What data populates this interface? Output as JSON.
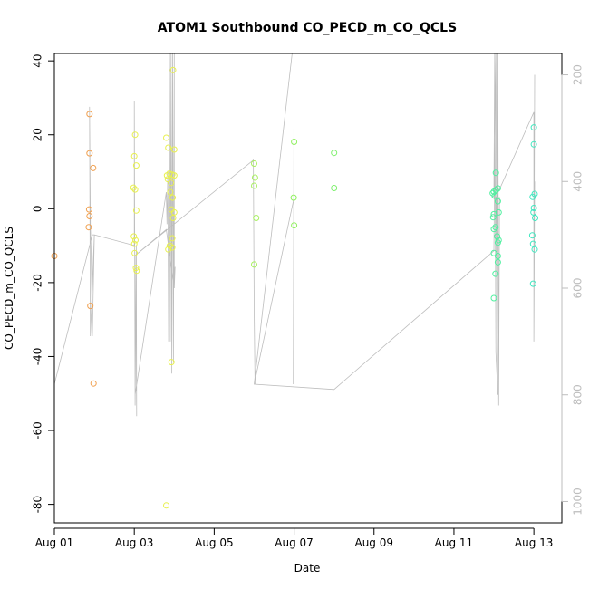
{
  "chart_data": {
    "type": "scatter",
    "title": "ATOM1 Southbound CO_PECD_m_CO_QCLS",
    "xlabel": "Date",
    "ylabel": "CO_PECD_m_CO_QCLS",
    "xlim": [
      0.0,
      12.7
    ],
    "ylim": [
      -85,
      42
    ],
    "x_ticks": [
      {
        "x": 0,
        "label": "Aug 01"
      },
      {
        "x": 2,
        "label": "Aug 03"
      },
      {
        "x": 4,
        "label": "Aug 05"
      },
      {
        "x": 6,
        "label": "Aug 07"
      },
      {
        "x": 8,
        "label": "Aug 09"
      },
      {
        "x": 10,
        "label": "Aug 11"
      },
      {
        "x": 12,
        "label": "Aug 13"
      }
    ],
    "y_ticks": [
      -80,
      -60,
      -40,
      -20,
      0,
      20,
      40
    ],
    "y2_ticks": [
      200,
      400,
      600,
      800,
      1000
    ],
    "y2lim": [
      1040,
      160
    ],
    "grid": false,
    "points": [
      {
        "x": 0.0,
        "y": -12.8,
        "color": "#f0a050"
      },
      {
        "x": 0.88,
        "y": 25.6,
        "color": "#f0a050"
      },
      {
        "x": 0.88,
        "y": 15.0,
        "color": "#f0a050"
      },
      {
        "x": 0.97,
        "y": 11.0,
        "color": "#f0a050"
      },
      {
        "x": 0.87,
        "y": -0.2,
        "color": "#f0a050"
      },
      {
        "x": 0.88,
        "y": -2.0,
        "color": "#f0a050"
      },
      {
        "x": 0.86,
        "y": -5.0,
        "color": "#f0a050"
      },
      {
        "x": 0.9,
        "y": -26.3,
        "color": "#f0a050"
      },
      {
        "x": 0.98,
        "y": -47.3,
        "color": "#f0a050"
      },
      {
        "x": 2.02,
        "y": 20.0,
        "color": "#e8f050"
      },
      {
        "x": 2.0,
        "y": 14.2,
        "color": "#e8f050"
      },
      {
        "x": 2.05,
        "y": 11.7,
        "color": "#e8f050"
      },
      {
        "x": 1.98,
        "y": 5.7,
        "color": "#e8f050"
      },
      {
        "x": 2.02,
        "y": 5.2,
        "color": "#e8f050"
      },
      {
        "x": 2.05,
        "y": -0.5,
        "color": "#e8f050"
      },
      {
        "x": 1.99,
        "y": -7.5,
        "color": "#e8f050"
      },
      {
        "x": 2.03,
        "y": -8.5,
        "color": "#e8f050"
      },
      {
        "x": 2.0,
        "y": -9.5,
        "color": "#e8f050"
      },
      {
        "x": 2.01,
        "y": -12.0,
        "color": "#e8f050"
      },
      {
        "x": 2.04,
        "y": -16.0,
        "color": "#e8f050"
      },
      {
        "x": 2.06,
        "y": -16.8,
        "color": "#e8f050"
      },
      {
        "x": 2.8,
        "y": 19.2,
        "color": "#e8f050"
      },
      {
        "x": 2.97,
        "y": 37.5,
        "color": "#e8f050"
      },
      {
        "x": 2.85,
        "y": 16.5,
        "color": "#e8f050"
      },
      {
        "x": 3.0,
        "y": 16.0,
        "color": "#e8f050"
      },
      {
        "x": 2.82,
        "y": 9.0,
        "color": "#e8f050"
      },
      {
        "x": 2.88,
        "y": 9.5,
        "color": "#e8f050"
      },
      {
        "x": 2.95,
        "y": 9.2,
        "color": "#e8f050"
      },
      {
        "x": 3.0,
        "y": 9.0,
        "color": "#e8f050"
      },
      {
        "x": 2.84,
        "y": 8.0,
        "color": "#e8f050"
      },
      {
        "x": 2.92,
        "y": 7.0,
        "color": "#e8f050"
      },
      {
        "x": 2.9,
        "y": 4.5,
        "color": "#e8f050"
      },
      {
        "x": 2.96,
        "y": 3.0,
        "color": "#e8f050"
      },
      {
        "x": 2.93,
        "y": -0.2,
        "color": "#e8f050"
      },
      {
        "x": 3.0,
        "y": -1.0,
        "color": "#e8f050"
      },
      {
        "x": 2.97,
        "y": -2.5,
        "color": "#e8f050"
      },
      {
        "x": 2.95,
        "y": -8.0,
        "color": "#e8f050"
      },
      {
        "x": 2.89,
        "y": -10.0,
        "color": "#e8f050"
      },
      {
        "x": 2.95,
        "y": -10.5,
        "color": "#e8f050"
      },
      {
        "x": 2.85,
        "y": -11.0,
        "color": "#e8f050"
      },
      {
        "x": 2.93,
        "y": -41.5,
        "color": "#e8f050"
      },
      {
        "x": 2.8,
        "y": -80.3,
        "color": "#e8f050"
      },
      {
        "x": 5.0,
        "y": 12.2,
        "color": "#a8f060"
      },
      {
        "x": 5.02,
        "y": 8.4,
        "color": "#a8f060"
      },
      {
        "x": 5.0,
        "y": 6.2,
        "color": "#a8f060"
      },
      {
        "x": 5.05,
        "y": -2.5,
        "color": "#a8f060"
      },
      {
        "x": 5.0,
        "y": -15.1,
        "color": "#a8f060"
      },
      {
        "x": 6.0,
        "y": 18.1,
        "color": "#90f060"
      },
      {
        "x": 5.99,
        "y": 3.0,
        "color": "#90f060"
      },
      {
        "x": 6.0,
        "y": -4.5,
        "color": "#90f060"
      },
      {
        "x": 7.0,
        "y": 15.1,
        "color": "#80f070"
      },
      {
        "x": 7.0,
        "y": 5.6,
        "color": "#80f070"
      },
      {
        "x": 11.05,
        "y": 9.7,
        "color": "#50f0a0"
      },
      {
        "x": 11.1,
        "y": 5.5,
        "color": "#50f0a0"
      },
      {
        "x": 11.0,
        "y": 4.6,
        "color": "#50f0a0"
      },
      {
        "x": 11.05,
        "y": 5.0,
        "color": "#50f0a0"
      },
      {
        "x": 10.97,
        "y": 4.2,
        "color": "#50f0a0"
      },
      {
        "x": 11.02,
        "y": 3.5,
        "color": "#50f0a0"
      },
      {
        "x": 11.1,
        "y": 2.0,
        "color": "#50f0a0"
      },
      {
        "x": 11.12,
        "y": -1.0,
        "color": "#50f0a0"
      },
      {
        "x": 11.0,
        "y": -1.5,
        "color": "#50f0a0"
      },
      {
        "x": 10.98,
        "y": -2.3,
        "color": "#50f0a0"
      },
      {
        "x": 11.04,
        "y": -5.0,
        "color": "#50f0a0"
      },
      {
        "x": 11.0,
        "y": -5.5,
        "color": "#50f0a0"
      },
      {
        "x": 11.08,
        "y": -7.5,
        "color": "#50f0a0"
      },
      {
        "x": 11.12,
        "y": -8.5,
        "color": "#50f0a0"
      },
      {
        "x": 11.1,
        "y": -9.2,
        "color": "#50f0a0"
      },
      {
        "x": 11.0,
        "y": -12.0,
        "color": "#50f0a0"
      },
      {
        "x": 11.1,
        "y": -12.8,
        "color": "#50f0a0"
      },
      {
        "x": 11.1,
        "y": -14.5,
        "color": "#50f0a0"
      },
      {
        "x": 11.04,
        "y": -17.6,
        "color": "#50f0a0"
      },
      {
        "x": 11.0,
        "y": -24.2,
        "color": "#50f0a0"
      },
      {
        "x": 12.0,
        "y": 22.0,
        "color": "#40e8c0"
      },
      {
        "x": 12.0,
        "y": 17.4,
        "color": "#40e8c0"
      },
      {
        "x": 12.02,
        "y": 4.0,
        "color": "#40e8c0"
      },
      {
        "x": 11.97,
        "y": 3.2,
        "color": "#40e8c0"
      },
      {
        "x": 12.0,
        "y": 0.2,
        "color": "#40e8c0"
      },
      {
        "x": 11.99,
        "y": -1.0,
        "color": "#40e8c0"
      },
      {
        "x": 12.03,
        "y": -2.5,
        "color": "#40e8c0"
      },
      {
        "x": 11.96,
        "y": -7.2,
        "color": "#40e8c0"
      },
      {
        "x": 11.98,
        "y": -9.5,
        "color": "#40e8c0"
      },
      {
        "x": 12.02,
        "y": -11.0,
        "color": "#40e8c0"
      },
      {
        "x": 11.98,
        "y": -20.3,
        "color": "#40e8c0"
      }
    ],
    "altitude_path": [
      [
        0.0,
        780
      ],
      [
        0.95,
        500
      ],
      [
        1.0,
        500
      ],
      [
        0.95,
        690
      ],
      [
        0.92,
        540
      ],
      [
        0.9,
        480
      ],
      [
        0.88,
        260
      ],
      [
        0.9,
        690
      ],
      [
        1.0,
        500
      ],
      [
        2.0,
        520
      ],
      [
        2.0,
        250
      ],
      [
        2.02,
        820
      ],
      [
        2.05,
        520
      ],
      [
        2.06,
        840
      ],
      [
        2.04,
        540
      ],
      [
        2.02,
        800
      ],
      [
        2.8,
        420
      ],
      [
        2.82,
        480
      ],
      [
        2.84,
        380
      ],
      [
        2.86,
        700
      ],
      [
        2.88,
        160
      ],
      [
        2.9,
        700
      ],
      [
        2.92,
        160
      ],
      [
        2.94,
        760
      ],
      [
        2.96,
        160
      ],
      [
        2.98,
        740
      ],
      [
        3.0,
        160
      ],
      [
        3.0,
        600
      ],
      [
        3.02,
        560
      ],
      [
        3.0,
        600
      ],
      [
        2.8,
        490
      ],
      [
        2.0,
        540
      ],
      [
        4.98,
        360
      ],
      [
        5.0,
        640
      ],
      [
        5.02,
        780
      ],
      [
        5.0,
        780
      ],
      [
        5.95,
        160
      ],
      [
        6.0,
        160
      ],
      [
        5.98,
        780
      ],
      [
        6.0,
        160
      ],
      [
        6.0,
        600
      ],
      [
        6.0,
        430
      ],
      [
        5.0,
        780
      ],
      [
        7.0,
        790
      ],
      [
        11.0,
        530
      ],
      [
        11.05,
        160
      ],
      [
        11.08,
        800
      ],
      [
        11.1,
        160
      ],
      [
        11.12,
        820
      ],
      [
        11.14,
        430
      ],
      [
        11.0,
        430
      ],
      [
        11.02,
        160
      ],
      [
        11.05,
        720
      ],
      [
        11.1,
        800
      ],
      [
        11.05,
        430
      ],
      [
        12.0,
        270
      ],
      [
        12.0,
        700
      ],
      [
        12.02,
        400
      ],
      [
        12.0,
        700
      ],
      [
        12.02,
        200
      ]
    ]
  }
}
